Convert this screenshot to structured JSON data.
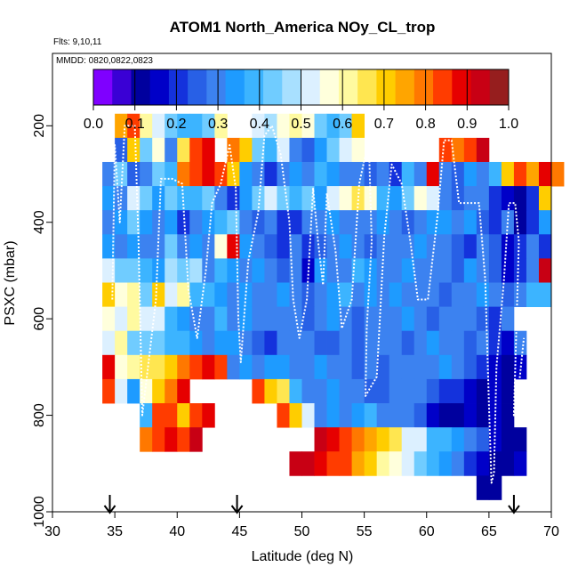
{
  "colors": {
    "background": "#ffffff",
    "axis": "#000000",
    "track": "#ffffff",
    "palette": [
      "#7f00ff",
      "#3a00d5",
      "#00009e",
      "#0000c8",
      "#1432dc",
      "#2860e6",
      "#3c82f0",
      "#1e9bff",
      "#3cb4ff",
      "#70ccff",
      "#a8e0ff",
      "#dcf0ff",
      "#ffffdc",
      "#fffaa0",
      "#ffe650",
      "#ffcd00",
      "#ffa500",
      "#ff7800",
      "#ff3c00",
      "#e60000",
      "#c80014",
      "#961e1e"
    ]
  },
  "chart_data": {
    "type": "heatmap",
    "title": "ATOM1 North_America NOy_CL_trop",
    "flights_text": "Flts: 9,10,11",
    "mmdd_text": "MMDD: 0820,0822,0823",
    "xlabel": "Latitude (deg N)",
    "ylabel": "PSXC (mbar)",
    "xlim": [
      30,
      70
    ],
    "ylim": [
      1000,
      50
    ],
    "x_ticks": [
      "30",
      "35",
      "40",
      "45",
      "50",
      "55",
      "60",
      "65",
      "70"
    ],
    "y_ticks": [
      "200",
      "400",
      "600",
      "800",
      "1000"
    ],
    "colorbar": {
      "range": [
        0.0,
        1.0
      ],
      "ticks": [
        "0.0",
        "0.1",
        "0.2",
        "0.3",
        "0.4",
        "0.5",
        "0.6",
        "0.7",
        "0.8",
        "0.9",
        "1.0"
      ]
    },
    "bin_width_deg": 1.0,
    "bin_height_mbar": 50,
    "rows": [
      {
        "p": 200,
        "x0": 35,
        "v": [
          0.75,
          0.82,
          0.62,
          0.5,
          0.45,
          0.4,
          0.38,
          0.42,
          0.6,
          null,
          null,
          0.52,
          0.47,
          0.55,
          0.6,
          0.55,
          0.42,
          0.4,
          0.45,
          0.72
        ]
      },
      {
        "p": 250,
        "x0": 35,
        "v": [
          0.25,
          0.7,
          0.45,
          0.56,
          0.3,
          0.65,
          0.82,
          0.9,
          null,
          0.8,
          0.7,
          0.45,
          0.4,
          0.52,
          0.3,
          0.25,
          0.35,
          0.45,
          0.5,
          0.58
        ]
      },
      {
        "p": 250,
        "x0": 61,
        "v": [
          0.82,
          0.78,
          0.82,
          0.95
        ]
      },
      {
        "p": 300,
        "x0": 34,
        "v": [
          0.3,
          0.42,
          0.25,
          0.3,
          0.45,
          0.38,
          0.78,
          0.85,
          0.9,
          0.82,
          0.7,
          0.32,
          0.3,
          0.22,
          0.3,
          0.35,
          0.3,
          0.4,
          0.32,
          0.28,
          0.3,
          0.25,
          0.3,
          0.22,
          0.4,
          0.3,
          0.87,
          0.3,
          0.25,
          0.35,
          0.3,
          0.4,
          0.7,
          0.82,
          0.75,
          0.9,
          0.8
        ]
      },
      {
        "p": 350,
        "x0": 34,
        "v": [
          0.35,
          0.3,
          0.5,
          0.42,
          0.33,
          0.45,
          0.38,
          0.4,
          0.42,
          0.3,
          0.2,
          0.35,
          0.45,
          0.5,
          0.42,
          0.38,
          0.45,
          0.33,
          0.5,
          0.55,
          0.65,
          0.55,
          0.4,
          0.32,
          0.45,
          0.58,
          0.5,
          0.3,
          0.25,
          0.28,
          0.3,
          0.22,
          0.15,
          0.1,
          0.2,
          0.7
        ]
      },
      {
        "p": 400,
        "x0": 34,
        "v": [
          0.3,
          0.35,
          0.42,
          0.36,
          0.3,
          0.33,
          0.2,
          0.3,
          0.35,
          0.38,
          0.42,
          0.3,
          0.25,
          0.3,
          0.2,
          0.22,
          0.3,
          0.28,
          0.32,
          0.3,
          0.28,
          0.3,
          0.35,
          0.3,
          0.25,
          0.3,
          0.32,
          0.35,
          0.3,
          0.32,
          0.25,
          0.22,
          0.3,
          0.12,
          0.22,
          0.32
        ]
      },
      {
        "p": 450,
        "x0": 34,
        "v": [
          0.35,
          0.3,
          0.32,
          0.28,
          0.3,
          0.42,
          0.3,
          0.35,
          0.3,
          0.55,
          0.9,
          0.35,
          0.3,
          0.25,
          0.22,
          0.3,
          0.2,
          0.25,
          0.3,
          0.35,
          0.3,
          0.25,
          0.3,
          0.28,
          0.3,
          0.32,
          0.3,
          0.28,
          0.25,
          0.2,
          0.3,
          0.25,
          0.15,
          0.2,
          0.3,
          0.22
        ]
      },
      {
        "p": 500,
        "x0": 34,
        "v": [
          0.5,
          0.45,
          0.42,
          0.4,
          0.32,
          0.48,
          0.44,
          0.46,
          0.3,
          0.38,
          0.35,
          0.3,
          0.35,
          0.28,
          0.25,
          0.3,
          0.15,
          0.32,
          0.3,
          0.3,
          0.38,
          0.35,
          0.3,
          0.3,
          0.32,
          0.3,
          0.28,
          0.3,
          0.25,
          0.32,
          0.3,
          0.25,
          0.15,
          0.2,
          0.3,
          0.92
        ]
      },
      {
        "p": 550,
        "x0": 34,
        "v": [
          0.72,
          0.55,
          0.6,
          0.45,
          0.7,
          0.52,
          0.62,
          0.4,
          0.38,
          0.35,
          0.3,
          0.32,
          0.3,
          0.28,
          0.32,
          0.3,
          0.25,
          0.3,
          0.32,
          0.38,
          0.3,
          0.32,
          0.3,
          0.35,
          0.3,
          0.28,
          0.3,
          0.25,
          0.3,
          0.28,
          0.32,
          0.3,
          0.25,
          0.3,
          0.4,
          0.38
        ]
      },
      {
        "p": 600,
        "x0": 34,
        "v": [
          0.58,
          0.52,
          0.62,
          0.52,
          0.5,
          0.4,
          0.35,
          0.3,
          0.3,
          0.38,
          0.3,
          0.32,
          0.3,
          0.3,
          0.28,
          0.3,
          0.26,
          0.3,
          0.32,
          0.3,
          0.25,
          0.3,
          0.28,
          0.3,
          0.32,
          0.3,
          0.27,
          0.3,
          0.28,
          0.3,
          0.25,
          0.2,
          0.3
        ]
      },
      {
        "p": 650,
        "x0": 34,
        "v": [
          0.52,
          0.6,
          0.45,
          0.45,
          0.42,
          0.4,
          0.38,
          0.33,
          0.3,
          0.35,
          0.32,
          0.3,
          0.25,
          0.22,
          0.3,
          0.28,
          0.3,
          0.26,
          0.25,
          0.3,
          0.26,
          0.3,
          0.28,
          0.3,
          0.25,
          0.3,
          0.32,
          0.3,
          0.28,
          0.25,
          0.3,
          0.22,
          0.15,
          0.3
        ]
      },
      {
        "p": 700,
        "x0": 34,
        "v": [
          0.88,
          0.55,
          0.6,
          0.65,
          0.68,
          0.72,
          0.8,
          0.82,
          0.9,
          0.85,
          0.3,
          0.32,
          0.28,
          0.33,
          0.35,
          0.3,
          0.3,
          0.32,
          0.3,
          0.3,
          0.26,
          0.3,
          0.25,
          0.3,
          0.28,
          0.3,
          0.3,
          0.32,
          0.3,
          0.25,
          0.2,
          0.15,
          0.12,
          0.15
        ]
      },
      {
        "p": 750,
        "x0": 34,
        "v": [
          0.85,
          0.5,
          0.35,
          0.55,
          0.7,
          0.8,
          0.9,
          null,
          null,
          null,
          null,
          null,
          0.82,
          0.72,
          0.65,
          0.4,
          0.3,
          0.3,
          0.32,
          0.28,
          0.3,
          0.27,
          0.25,
          0.3,
          0.3,
          0.28,
          0.25,
          0.22,
          0.2,
          0.15,
          0.1,
          0.15,
          0.12
        ]
      },
      {
        "p": 800,
        "x0": 37,
        "v": [
          0.4,
          0.82,
          0.85,
          0.72,
          0.85,
          0.9,
          null,
          null,
          null,
          null,
          null,
          0.85,
          0.72,
          0.5,
          0.3,
          0.32,
          0.3,
          0.35,
          0.38,
          0.3,
          0.3,
          0.28,
          0.25,
          0.15,
          0.12,
          0.1,
          0.15,
          0.12,
          0.15,
          0.1
        ]
      },
      {
        "p": 850,
        "x0": 37,
        "v": [
          0.8,
          0.85,
          0.9,
          0.85,
          0.93
        ]
      },
      {
        "p": 850,
        "x0": 51,
        "v": [
          0.92,
          0.88,
          0.85,
          0.8,
          0.75,
          0.72,
          0.65,
          0.52,
          0.5,
          0.4,
          0.38,
          0.35,
          0.3,
          0.25,
          0.15,
          0.12,
          0.1
        ]
      },
      {
        "p": 900,
        "x0": 49,
        "v": [
          0.92,
          0.95,
          0.88,
          0.82,
          0.82,
          0.75,
          0.7,
          0.62,
          0.58,
          0.52,
          0.45,
          0.4,
          0.35,
          0.3,
          0.2,
          0.15,
          0.12,
          0.1,
          0.15
        ]
      },
      {
        "p": 950,
        "x0": 64,
        "v": [
          0.1,
          0.1
        ]
      }
    ],
    "flight_track": [
      [
        34.8,
        560
      ],
      [
        35.0,
        240
      ],
      [
        35.4,
        400
      ],
      [
        35.8,
        200
      ],
      [
        36.6,
        200
      ],
      [
        36.9,
        440
      ],
      [
        37.2,
        800
      ],
      [
        38.3,
        560
      ],
      [
        38.7,
        310
      ],
      [
        39.6,
        310
      ],
      [
        40.4,
        320
      ],
      [
        40.9,
        540
      ],
      [
        41.6,
        640
      ],
      [
        42.3,
        500
      ],
      [
        42.8,
        360
      ],
      [
        43.5,
        320
      ],
      [
        44.2,
        240
      ],
      [
        44.7,
        330
      ],
      [
        44.9,
        600
      ],
      [
        45.1,
        690
      ],
      [
        45.7,
        480
      ],
      [
        46.5,
        380
      ],
      [
        47.0,
        220
      ],
      [
        47.6,
        200
      ],
      [
        48.3,
        260
      ],
      [
        49.0,
        400
      ],
      [
        49.3,
        560
      ],
      [
        49.8,
        640
      ],
      [
        50.4,
        560
      ],
      [
        50.9,
        330
      ],
      [
        51.3,
        440
      ],
      [
        51.7,
        530
      ],
      [
        52.0,
        340
      ],
      [
        52.7,
        460
      ],
      [
        53.2,
        620
      ],
      [
        54.0,
        560
      ],
      [
        54.6,
        320
      ],
      [
        55.1,
        260
      ],
      [
        55.4,
        260
      ],
      [
        55.6,
        440
      ],
      [
        55.2,
        620
      ],
      [
        55.1,
        760
      ],
      [
        56.0,
        720
      ],
      [
        56.6,
        430
      ],
      [
        57.2,
        280
      ],
      [
        58.0,
        320
      ],
      [
        58.7,
        440
      ],
      [
        59.3,
        560
      ],
      [
        60.1,
        560
      ],
      [
        60.9,
        380
      ],
      [
        61.4,
        230
      ],
      [
        62.0,
        230
      ],
      [
        62.6,
        360
      ],
      [
        63.4,
        360
      ],
      [
        64.2,
        360
      ],
      [
        64.7,
        520
      ],
      [
        65.0,
        780
      ],
      [
        65.2,
        940
      ],
      [
        65.4,
        920
      ],
      [
        65.6,
        700
      ],
      [
        66.2,
        520
      ],
      [
        66.6,
        360
      ],
      [
        67.1,
        360
      ],
      [
        67.4,
        440
      ],
      [
        67.0,
        800
      ],
      [
        67.4,
        740
      ],
      [
        67.8,
        640
      ]
    ],
    "track_markers_lat": [
      34.6,
      44.8,
      67.0
    ]
  }
}
